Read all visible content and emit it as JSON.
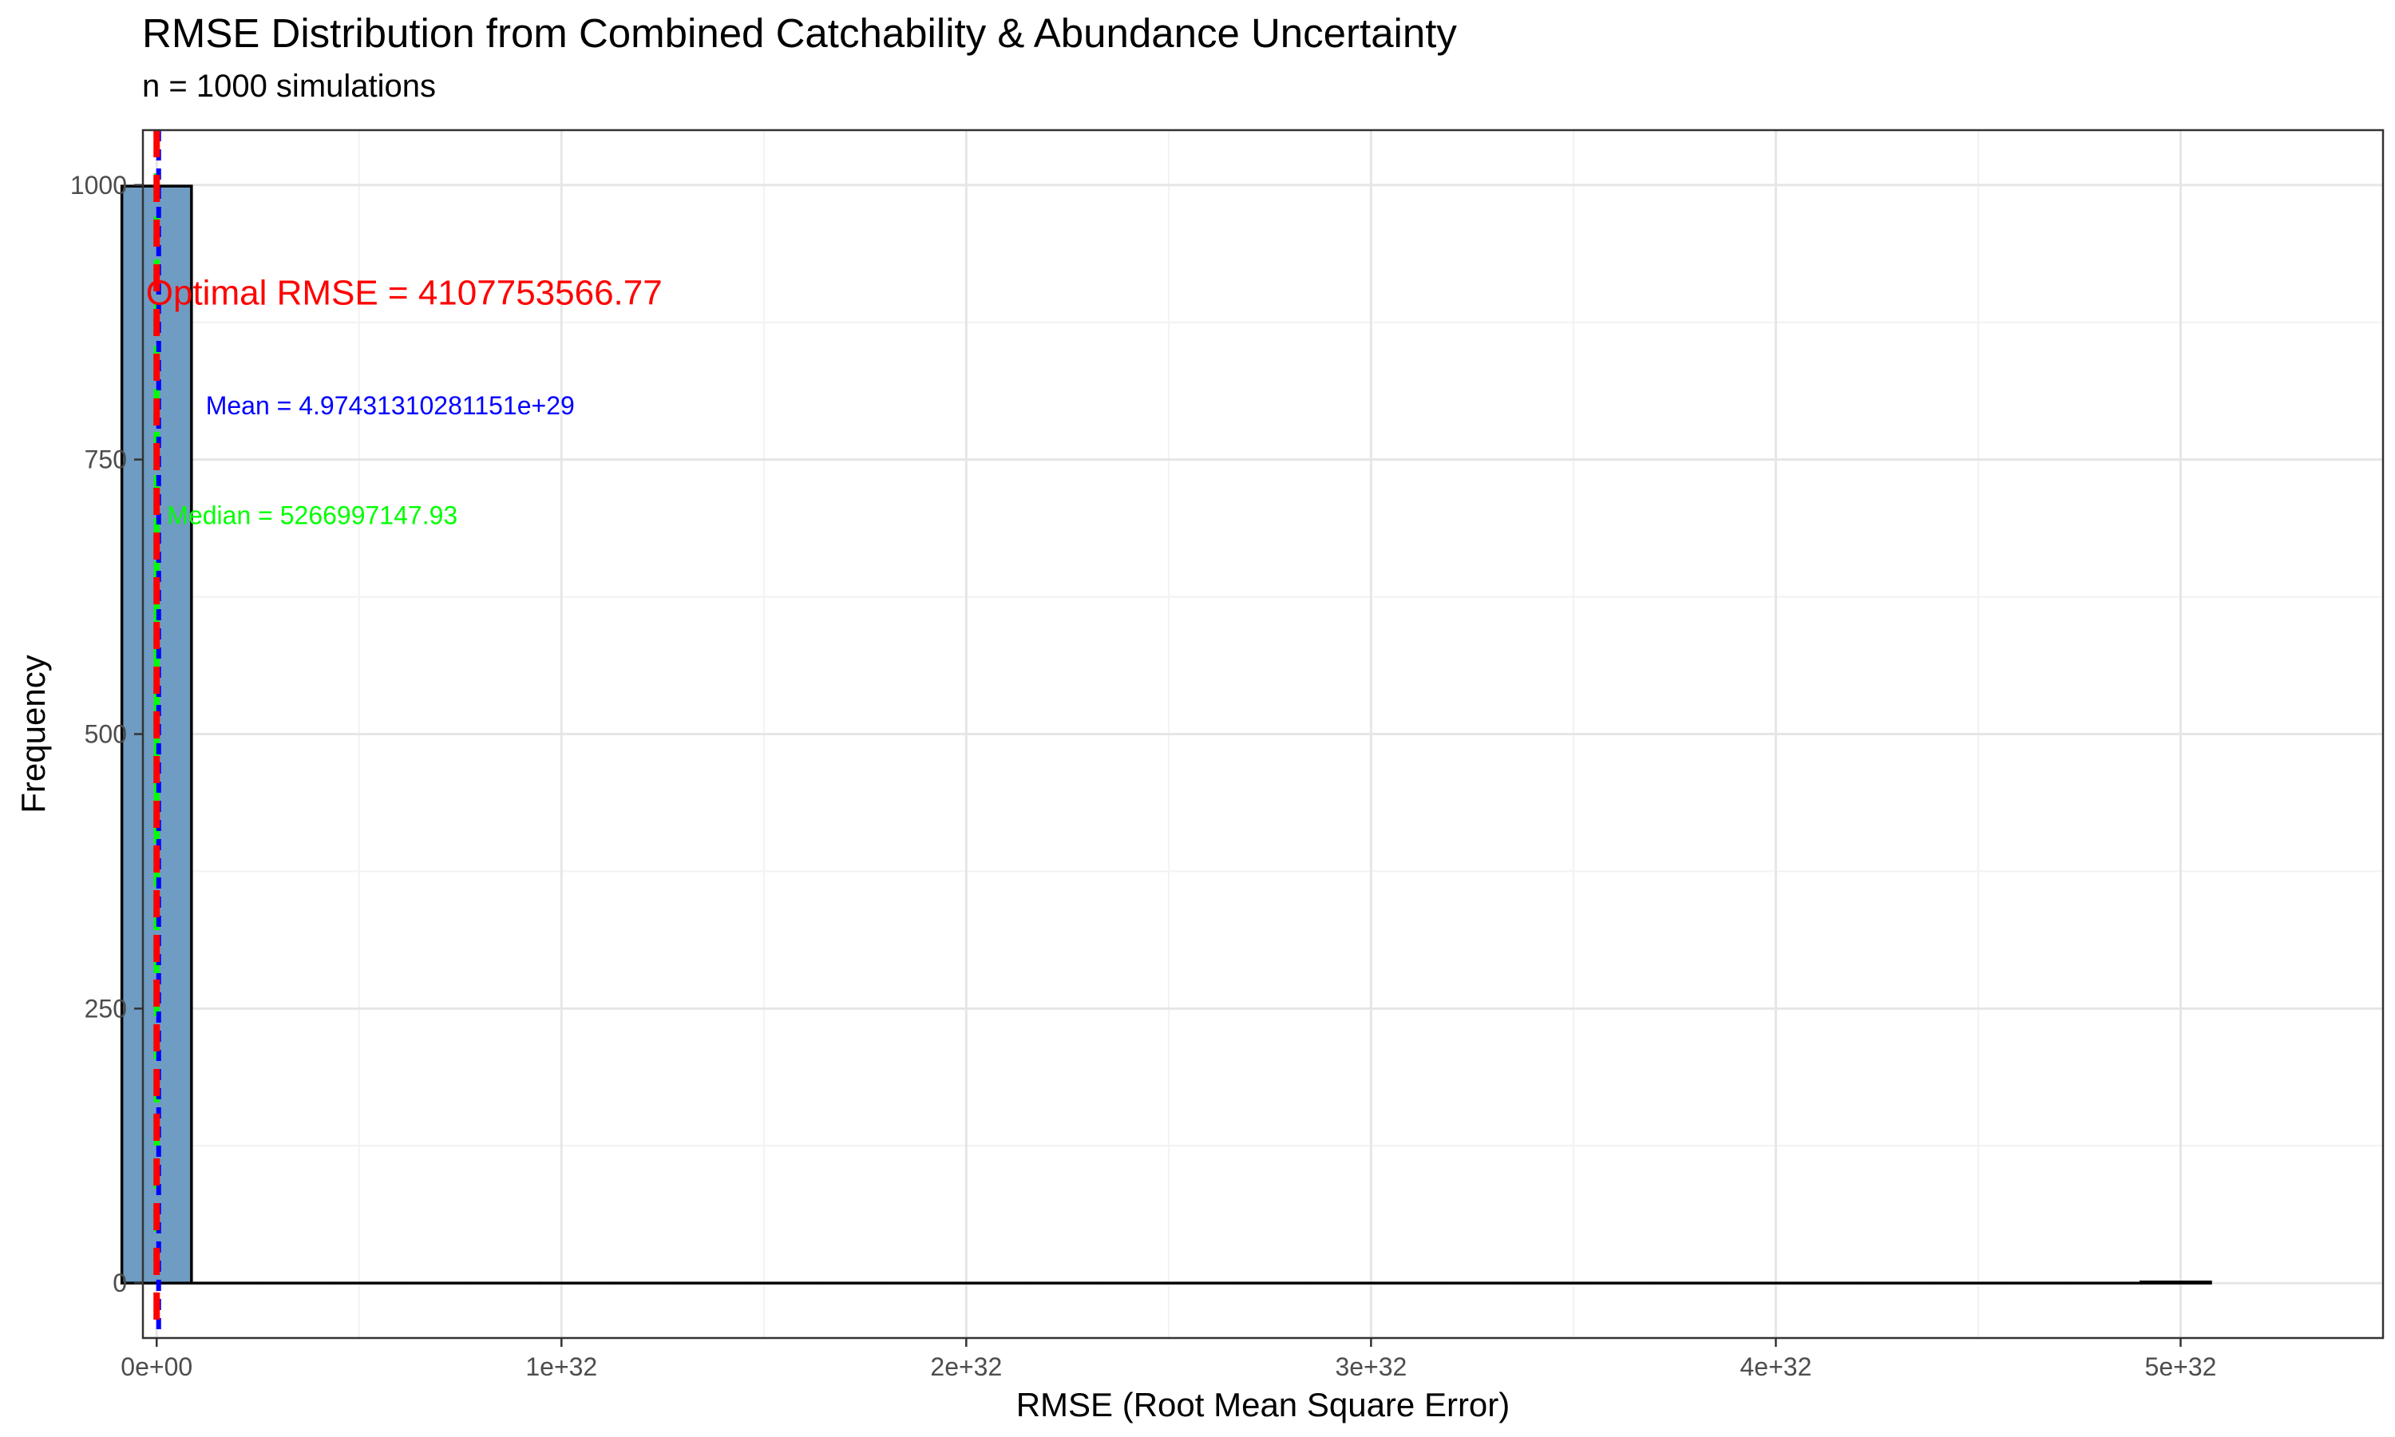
{
  "chart_data": {
    "type": "bar",
    "title": "RMSE Distribution from Combined Catchability & Abundance Uncertainty",
    "subtitle": "n = 1000 simulations",
    "xlabel": "RMSE (Root Mean Square Error)",
    "ylabel": "Frequency",
    "xlim": [
      -3.4e+30,
      5.5e+32
    ],
    "ylim": [
      -50,
      1050
    ],
    "x_ticks": [
      {
        "value": 0,
        "label": "0e+00"
      },
      {
        "value": 1e+32,
        "label": "1e+32"
      },
      {
        "value": 2e+32,
        "label": "2e+32"
      },
      {
        "value": 3e+32,
        "label": "3e+32"
      },
      {
        "value": 4e+32,
        "label": "4e+32"
      },
      {
        "value": 5e+32,
        "label": "5e+32"
      }
    ],
    "y_ticks": [
      {
        "value": 0,
        "label": "0"
      },
      {
        "value": 250,
        "label": "250"
      },
      {
        "value": 500,
        "label": "500"
      },
      {
        "value": 750,
        "label": "750"
      },
      {
        "value": 1000,
        "label": "1000"
      }
    ],
    "grid": true,
    "bin_width": 1.72e+31,
    "bins": [
      {
        "x": 0,
        "count": 999
      },
      {
        "x": 1.72e+31,
        "count": 0
      },
      {
        "x": 3.44e+31,
        "count": 0
      },
      {
        "x": 5.16e+31,
        "count": 0
      },
      {
        "x": 6.88e+31,
        "count": 0
      },
      {
        "x": 8.6e+31,
        "count": 0
      },
      {
        "x": 1.032e+32,
        "count": 0
      },
      {
        "x": 1.204e+32,
        "count": 0
      },
      {
        "x": 1.376e+32,
        "count": 0
      },
      {
        "x": 1.548e+32,
        "count": 0
      },
      {
        "x": 1.72e+32,
        "count": 0
      },
      {
        "x": 1.892e+32,
        "count": 0
      },
      {
        "x": 2.064e+32,
        "count": 0
      },
      {
        "x": 2.236e+32,
        "count": 0
      },
      {
        "x": 2.408e+32,
        "count": 0
      },
      {
        "x": 2.58e+32,
        "count": 0
      },
      {
        "x": 2.752e+32,
        "count": 0
      },
      {
        "x": 2.924e+32,
        "count": 0
      },
      {
        "x": 3.096e+32,
        "count": 0
      },
      {
        "x": 3.268e+32,
        "count": 0
      },
      {
        "x": 3.44e+32,
        "count": 0
      },
      {
        "x": 3.612e+32,
        "count": 0
      },
      {
        "x": 3.784e+32,
        "count": 0
      },
      {
        "x": 3.956e+32,
        "count": 0
      },
      {
        "x": 4.128e+32,
        "count": 0
      },
      {
        "x": 4.3e+32,
        "count": 0
      },
      {
        "x": 4.472e+32,
        "count": 0
      },
      {
        "x": 4.644e+32,
        "count": 0
      },
      {
        "x": 4.816e+32,
        "count": 0
      },
      {
        "x": 4.988e+32,
        "count": 1
      }
    ],
    "reference_lines": [
      {
        "name": "Median",
        "value": 5266997147.93,
        "color": "#00ff00",
        "label": "Median = 5266997147.93",
        "label_y": 700
      },
      {
        "name": "Mean",
        "value": 4.97431310281151e+29,
        "color": "#0000ff",
        "label": "Mean = 4.97431310281151e+29",
        "label_y": 800
      },
      {
        "name": "Optimal",
        "value": 4107753566.77,
        "color": "#ff0000",
        "label": "Optimal RMSE = 4107753566.77",
        "label_y": 900
      }
    ],
    "bar_fill": "#6f9cc2",
    "bar_outline": "#000000"
  }
}
